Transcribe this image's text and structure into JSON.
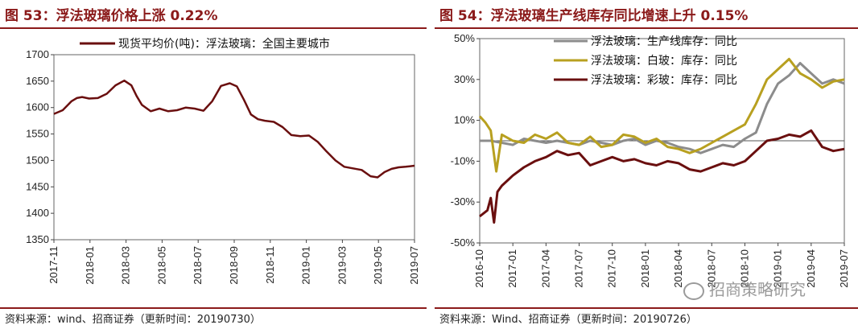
{
  "left": {
    "title": "图 53：浮法玻璃价格上涨 0.22%",
    "source": "资料来源：wind、招商证券（更新时间：20190730）"
  },
  "right": {
    "title": "图 54：浮法玻璃生产线库存同比增速上升 0.15%",
    "source": "资料来源：Wind、招商证券（更新时间：20190726）",
    "watermark": "招商策略研究"
  },
  "colors": {
    "accent": "#8b1a1a",
    "gray": "#8c8c8c",
    "gold": "#b8a020",
    "maroon": "#6a0f0f"
  },
  "chart_data": [
    {
      "type": "line",
      "yticks": [
        "1700",
        "1650",
        "1600",
        "1550",
        "1500",
        "1450",
        "1400",
        "1350"
      ],
      "ylim": [
        1350,
        1700
      ],
      "xticks": [
        "2017-11",
        "2018-01",
        "2018-03",
        "2018-05",
        "2018-07",
        "2018-09",
        "2018-11",
        "2019-01",
        "2019-03",
        "2019-05",
        "2019-07"
      ],
      "xlim": [
        0,
        20.5
      ],
      "legend": "top-center",
      "series": [
        {
          "name": "现货平均价(吨)：浮法玻璃：全国主要城市",
          "color": "#6a0f0f",
          "x": [
            0,
            0.5,
            1,
            1.3,
            1.6,
            2,
            2.5,
            3,
            3.5,
            4,
            4.4,
            4.7,
            5,
            5.5,
            6,
            6.5,
            7,
            7.5,
            8,
            8.5,
            9,
            9.5,
            10,
            10.4,
            10.8,
            11.2,
            11.6,
            12,
            12.5,
            13,
            13.5,
            14,
            14.5,
            15,
            15.5,
            16,
            16.5,
            17,
            17.5,
            18,
            18.4,
            18.8,
            19.2,
            19.6,
            20,
            20.5
          ],
          "y": [
            1588,
            1595,
            1612,
            1618,
            1620,
            1617,
            1618,
            1626,
            1642,
            1651,
            1642,
            1622,
            1605,
            1593,
            1598,
            1593,
            1595,
            1600,
            1598,
            1594,
            1612,
            1641,
            1646,
            1640,
            1615,
            1587,
            1578,
            1575,
            1573,
            1563,
            1548,
            1546,
            1547,
            1535,
            1517,
            1500,
            1488,
            1485,
            1482,
            1470,
            1468,
            1478,
            1484,
            1487,
            1488,
            1490
          ]
        }
      ]
    },
    {
      "type": "line",
      "yticks": [
        "50%",
        "30%",
        "10%",
        "-10%",
        "-30%",
        "-50%"
      ],
      "ylim": [
        -50,
        50
      ],
      "xticks": [
        "2016-10",
        "2017-01",
        "2017-04",
        "2017-07",
        "2017-10",
        "2018-01",
        "2018-04",
        "2018-07",
        "2018-10",
        "2019-01",
        "2019-04",
        "2019-07"
      ],
      "xlim": [
        0,
        33
      ],
      "legend": "top-left",
      "series": [
        {
          "name": "浮法玻璃：生产线库存：同比",
          "color": "#8c8c8c",
          "x": [
            0,
            1,
            2,
            3,
            4,
            5,
            6,
            7,
            8,
            9,
            10,
            11,
            12,
            13,
            14,
            15,
            16,
            17,
            18,
            19,
            20,
            21,
            22,
            23,
            24,
            25,
            26,
            27,
            28,
            29,
            30,
            31,
            32,
            33
          ],
          "y": [
            0,
            0,
            -1,
            -2,
            1,
            0,
            -1,
            0,
            -1,
            -2,
            0,
            -1,
            -2,
            0,
            1,
            -2,
            0,
            -1,
            -3,
            -4,
            -6,
            -4,
            -2,
            -3,
            1,
            4,
            18,
            28,
            32,
            38,
            33,
            28,
            30,
            28
          ]
        },
        {
          "name": "浮法玻璃：白玻：库存：同比",
          "color": "#b8a020",
          "x": [
            0,
            0.5,
            1,
            1.5,
            2,
            3,
            4,
            5,
            6,
            7,
            8,
            9,
            10,
            11,
            12,
            13,
            14,
            15,
            16,
            17,
            18,
            19,
            20,
            21,
            22,
            23,
            24,
            25,
            26,
            27,
            28,
            29,
            30,
            31,
            32,
            33
          ],
          "y": [
            12,
            9,
            5,
            -15,
            3,
            0,
            -1,
            3,
            1,
            4,
            -1,
            -2,
            2,
            -3,
            -2,
            3,
            2,
            -1,
            1,
            -3,
            -4,
            -6,
            -4,
            -1,
            2,
            5,
            8,
            18,
            30,
            35,
            40,
            33,
            30,
            26,
            29,
            30
          ]
        },
        {
          "name": "浮法玻璃：彩玻：库存：同比",
          "color": "#6a0f0f",
          "x": [
            0,
            0.7,
            1,
            1.3,
            1.6,
            2,
            3,
            4,
            5,
            6,
            7,
            8,
            9,
            10,
            11,
            12,
            13,
            14,
            15,
            16,
            17,
            18,
            19,
            20,
            21,
            22,
            23,
            24,
            25,
            26,
            27,
            28,
            29,
            30,
            31,
            32,
            33
          ],
          "y": [
            -37,
            -34,
            -28,
            -40,
            -25,
            -22,
            -17,
            -13,
            -10,
            -8,
            -5,
            -7,
            -6,
            -12,
            -10,
            -8,
            -10,
            -9,
            -11,
            -12,
            -10,
            -11,
            -14,
            -15,
            -13,
            -11,
            -12,
            -10,
            -5,
            0,
            1,
            3,
            2,
            5,
            -3,
            -5,
            -4
          ]
        }
      ]
    }
  ]
}
